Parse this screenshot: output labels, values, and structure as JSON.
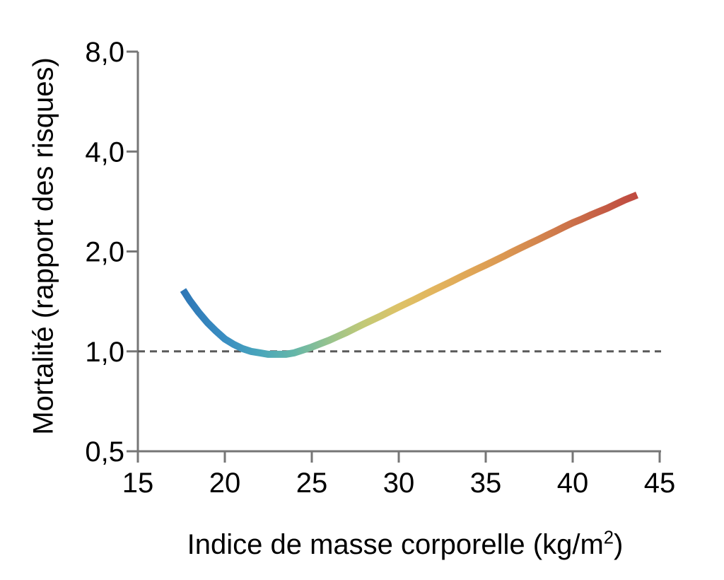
{
  "figure": {
    "background": "#ffffff",
    "text_color": "#000000"
  },
  "chart_data": {
    "type": "line",
    "title": "",
    "xlabel": "Indice de masse corporelle (kg/m²)",
    "xlabel_parts": {
      "base": "Indice de masse corporelle (kg/m",
      "sup": "2",
      "close": ")"
    },
    "ylabel": "Mortalité (rapport des risques)",
    "grid": false,
    "legend": false,
    "axis_color": "#767676",
    "x_axis": {
      "scale": "linear",
      "min": 15,
      "max": 45,
      "ticks": [
        15,
        20,
        25,
        30,
        35,
        40,
        45
      ],
      "tick_labels": [
        "15",
        "20",
        "25",
        "30",
        "35",
        "40",
        "45"
      ]
    },
    "y_axis": {
      "scale": "log2",
      "min": 0.5,
      "max": 8,
      "ticks": [
        0.5,
        1,
        2,
        4,
        8
      ],
      "tick_labels": [
        "0,5",
        "1,0",
        "2,0",
        "4,0",
        "8,0"
      ]
    },
    "reference_line": {
      "y": 1.0,
      "style": "dashed",
      "color": "#5a5a5a",
      "width": 3,
      "dash": "10 7"
    },
    "series": [
      {
        "name": "mortality-hazard-ratio-vs-bmi",
        "stroke_width": 10,
        "x": [
          17.6,
          18,
          18.5,
          19,
          19.5,
          20,
          20.5,
          21,
          21.5,
          22,
          22.5,
          23,
          23.5,
          24,
          24.5,
          25,
          25.5,
          26,
          26.5,
          27,
          27.5,
          28,
          28.5,
          29,
          29.5,
          30,
          30.5,
          31,
          31.5,
          32,
          32.5,
          33,
          33.5,
          34,
          34.5,
          35,
          35.5,
          36,
          36.5,
          37,
          37.5,
          38,
          38.5,
          39,
          39.5,
          40,
          40.5,
          41,
          41.5,
          42,
          42.5,
          43,
          43.5,
          43.7
        ],
        "y": [
          1.53,
          1.42,
          1.31,
          1.22,
          1.15,
          1.09,
          1.05,
          1.02,
          1.0,
          0.99,
          0.98,
          0.98,
          0.98,
          0.99,
          1.01,
          1.03,
          1.055,
          1.08,
          1.11,
          1.14,
          1.175,
          1.21,
          1.245,
          1.28,
          1.32,
          1.36,
          1.4,
          1.44,
          1.485,
          1.53,
          1.575,
          1.62,
          1.67,
          1.72,
          1.77,
          1.82,
          1.875,
          1.93,
          1.99,
          2.05,
          2.11,
          2.17,
          2.235,
          2.3,
          2.37,
          2.44,
          2.5,
          2.57,
          2.635,
          2.7,
          2.78,
          2.86,
          2.93,
          2.96
        ],
        "gradient_stops": [
          {
            "offset": 0.0,
            "color": "#2e77b6"
          },
          {
            "offset": 0.092,
            "color": "#3a8ec2"
          },
          {
            "offset": 0.169,
            "color": "#49a6bb"
          },
          {
            "offset": 0.245,
            "color": "#65b6a8"
          },
          {
            "offset": 0.322,
            "color": "#97c38e"
          },
          {
            "offset": 0.398,
            "color": "#c2c976"
          },
          {
            "offset": 0.475,
            "color": "#ddc267"
          },
          {
            "offset": 0.552,
            "color": "#e2b55e"
          },
          {
            "offset": 0.628,
            "color": "#e0a757"
          },
          {
            "offset": 0.705,
            "color": "#db9852"
          },
          {
            "offset": 0.782,
            "color": "#d3854e"
          },
          {
            "offset": 0.858,
            "color": "#cb7049"
          },
          {
            "offset": 0.935,
            "color": "#c45a44"
          },
          {
            "offset": 1.0,
            "color": "#bf4a40"
          }
        ]
      }
    ]
  }
}
